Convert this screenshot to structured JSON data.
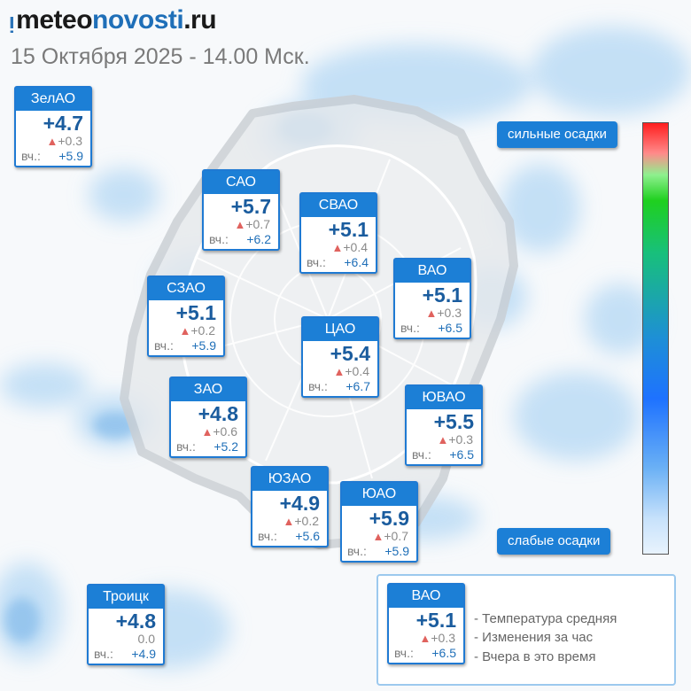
{
  "header": {
    "logo_mark": "ᴉ",
    "logo_part1": "meteo",
    "logo_part2": "novosti",
    "logo_part3": ".ru",
    "subtitle": "15 Октября 2025 - 14.00 Мск."
  },
  "scale": {
    "top_label": "сильные осадки",
    "bottom_label": "слабые осадки",
    "colors": [
      "#ff1e1e",
      "#1fd01f",
      "#1e72ff",
      "#e8f3fd"
    ]
  },
  "colors": {
    "card_header": "#1c7fd6",
    "temp_text": "#1a5c9e",
    "up_arrow": "#e0625e",
    "precip": "#8cc0ec"
  },
  "districts": [
    {
      "name": "ЗелАО",
      "temp": "+4.7",
      "arrow": "▲",
      "change": "+0.3",
      "yesterday_label": "вч.:",
      "yesterday": "+5.9"
    },
    {
      "name": "САО",
      "temp": "+5.7",
      "arrow": "▲",
      "change": "+0.7",
      "yesterday_label": "вч.:",
      "yesterday": "+6.2"
    },
    {
      "name": "СВАО",
      "temp": "+5.1",
      "arrow": "▲",
      "change": "+0.4",
      "yesterday_label": "вч.:",
      "yesterday": "+6.4"
    },
    {
      "name": "ВАО",
      "temp": "+5.1",
      "arrow": "▲",
      "change": "+0.3",
      "yesterday_label": "вч.:",
      "yesterday": "+6.5"
    },
    {
      "name": "СЗАО",
      "temp": "+5.1",
      "arrow": "▲",
      "change": "+0.2",
      "yesterday_label": "вч.:",
      "yesterday": "+5.9"
    },
    {
      "name": "ЦАО",
      "temp": "+5.4",
      "arrow": "▲",
      "change": "+0.4",
      "yesterday_label": "вч.:",
      "yesterday": "+6.7"
    },
    {
      "name": "ЗАО",
      "temp": "+4.8",
      "arrow": "▲",
      "change": "+0.6",
      "yesterday_label": "вч.:",
      "yesterday": "+5.2"
    },
    {
      "name": "ЮВАО",
      "temp": "+5.5",
      "arrow": "▲",
      "change": "+0.3",
      "yesterday_label": "вч.:",
      "yesterday": "+6.5"
    },
    {
      "name": "ЮЗАО",
      "temp": "+4.9",
      "arrow": "▲",
      "change": "+0.2",
      "yesterday_label": "вч.:",
      "yesterday": "+5.6"
    },
    {
      "name": "ЮАО",
      "temp": "+5.9",
      "arrow": "▲",
      "change": "+0.7",
      "yesterday_label": "вч.:",
      "yesterday": "+5.9"
    },
    {
      "name": "Троицк",
      "temp": "+4.8",
      "arrow": "",
      "change": "0.0",
      "yesterday_label": "вч.:",
      "yesterday": "+4.9"
    }
  ],
  "legend": {
    "example": {
      "name": "ВАО",
      "temp": "+5.1",
      "arrow": "▲",
      "change": "+0.3",
      "yesterday_label": "вч.:",
      "yesterday": "+6.5"
    },
    "line1": "- Температура средняя",
    "line2": "- Изменения за час",
    "line3": "- Вчера в это время"
  }
}
